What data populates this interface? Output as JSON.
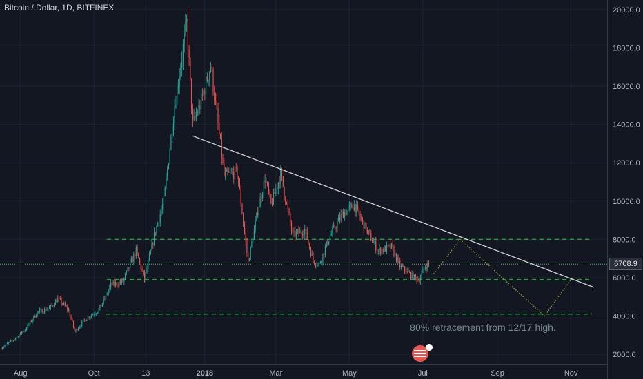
{
  "header": {
    "title": "Bitcoin / Dollar, 1D, BITFINEX"
  },
  "price_label": "6708.9",
  "annotation": "80% retracement from 12/17 high.",
  "colors": {
    "background": "#131722",
    "up": "#26a69a",
    "down": "#ef5350",
    "support": "#1ea52c",
    "trendline": "#d6d6d6",
    "projection": "#a7a230",
    "axis_text": "#b2b5be",
    "current": "#4caf50"
  },
  "chart_data": {
    "type": "candlestick",
    "title": "Bitcoin / Dollar, 1D, BITFINEX",
    "ylim": [
      1500,
      20500
    ],
    "y_ticks": [
      "2000.0",
      "4000.0",
      "6000.0",
      "8000.0",
      "10000.0",
      "12000.0",
      "14000.0",
      "16000.0",
      "18000.0",
      "20000.0"
    ],
    "y_tick_values": [
      2000,
      4000,
      6000,
      8000,
      10000,
      12000,
      14000,
      16000,
      18000,
      20000
    ],
    "x_ticks": [
      "Aug",
      "Oct",
      "13",
      "2018",
      "Mar",
      "May",
      "Jul",
      "Sep",
      "Nov"
    ],
    "x_tick_dates": [
      "2017-08-01",
      "2017-10-01",
      "2017-11-13",
      "2018-01-01",
      "2018-03-01",
      "2018-05-01",
      "2018-07-01",
      "2018-09-01",
      "2018-11-01"
    ],
    "x_range": [
      "2017-07-15",
      "2018-12-01"
    ],
    "price_path": [
      [
        "2017-07-15",
        2300
      ],
      [
        "2017-07-25",
        2700
      ],
      [
        "2017-08-05",
        3300
      ],
      [
        "2017-08-15",
        4200
      ],
      [
        "2017-08-25",
        4400
      ],
      [
        "2017-09-01",
        4900
      ],
      [
        "2017-09-10",
        4300
      ],
      [
        "2017-09-15",
        3200
      ],
      [
        "2017-09-25",
        3900
      ],
      [
        "2017-10-05",
        4300
      ],
      [
        "2017-10-15",
        5600
      ],
      [
        "2017-10-25",
        5800
      ],
      [
        "2017-11-05",
        7400
      ],
      [
        "2017-11-12",
        5900
      ],
      [
        "2017-11-20",
        8200
      ],
      [
        "2017-11-28",
        10000
      ],
      [
        "2017-12-07",
        15000
      ],
      [
        "2017-12-17",
        19300
      ],
      [
        "2017-12-22",
        14000
      ],
      [
        "2017-12-28",
        15000
      ],
      [
        "2018-01-06",
        17100
      ],
      [
        "2018-01-12",
        14000
      ],
      [
        "2018-01-17",
        11300
      ],
      [
        "2018-01-28",
        11500
      ],
      [
        "2018-02-06",
        6800
      ],
      [
        "2018-02-14",
        9500
      ],
      [
        "2018-02-20",
        11200
      ],
      [
        "2018-02-25",
        9800
      ],
      [
        "2018-03-05",
        11400
      ],
      [
        "2018-03-15",
        8200
      ],
      [
        "2018-03-25",
        8500
      ],
      [
        "2018-04-01",
        6900
      ],
      [
        "2018-04-06",
        6700
      ],
      [
        "2018-04-15",
        8200
      ],
      [
        "2018-04-25",
        9300
      ],
      [
        "2018-05-05",
        9800
      ],
      [
        "2018-05-15",
        8500
      ],
      [
        "2018-05-25",
        7400
      ],
      [
        "2018-06-05",
        7600
      ],
      [
        "2018-06-12",
        6600
      ],
      [
        "2018-06-24",
        6000
      ],
      [
        "2018-06-28",
        5900
      ],
      [
        "2018-07-03",
        6600
      ],
      [
        "2018-07-06",
        6708.9
      ]
    ],
    "support_lines": [
      8000,
      5900,
      4100
    ],
    "trendline": [
      [
        "2017-12-22",
        13400
      ],
      [
        "2018-11-20",
        5500
      ]
    ],
    "projection": [
      [
        "2018-07-10",
        6200
      ],
      [
        "2018-08-01",
        8000
      ],
      [
        "2018-10-10",
        4000
      ],
      [
        "2018-11-01",
        5900
      ]
    ],
    "current_price": 6708.9,
    "annotations": [
      "80% retracement from 12/17 high."
    ]
  }
}
